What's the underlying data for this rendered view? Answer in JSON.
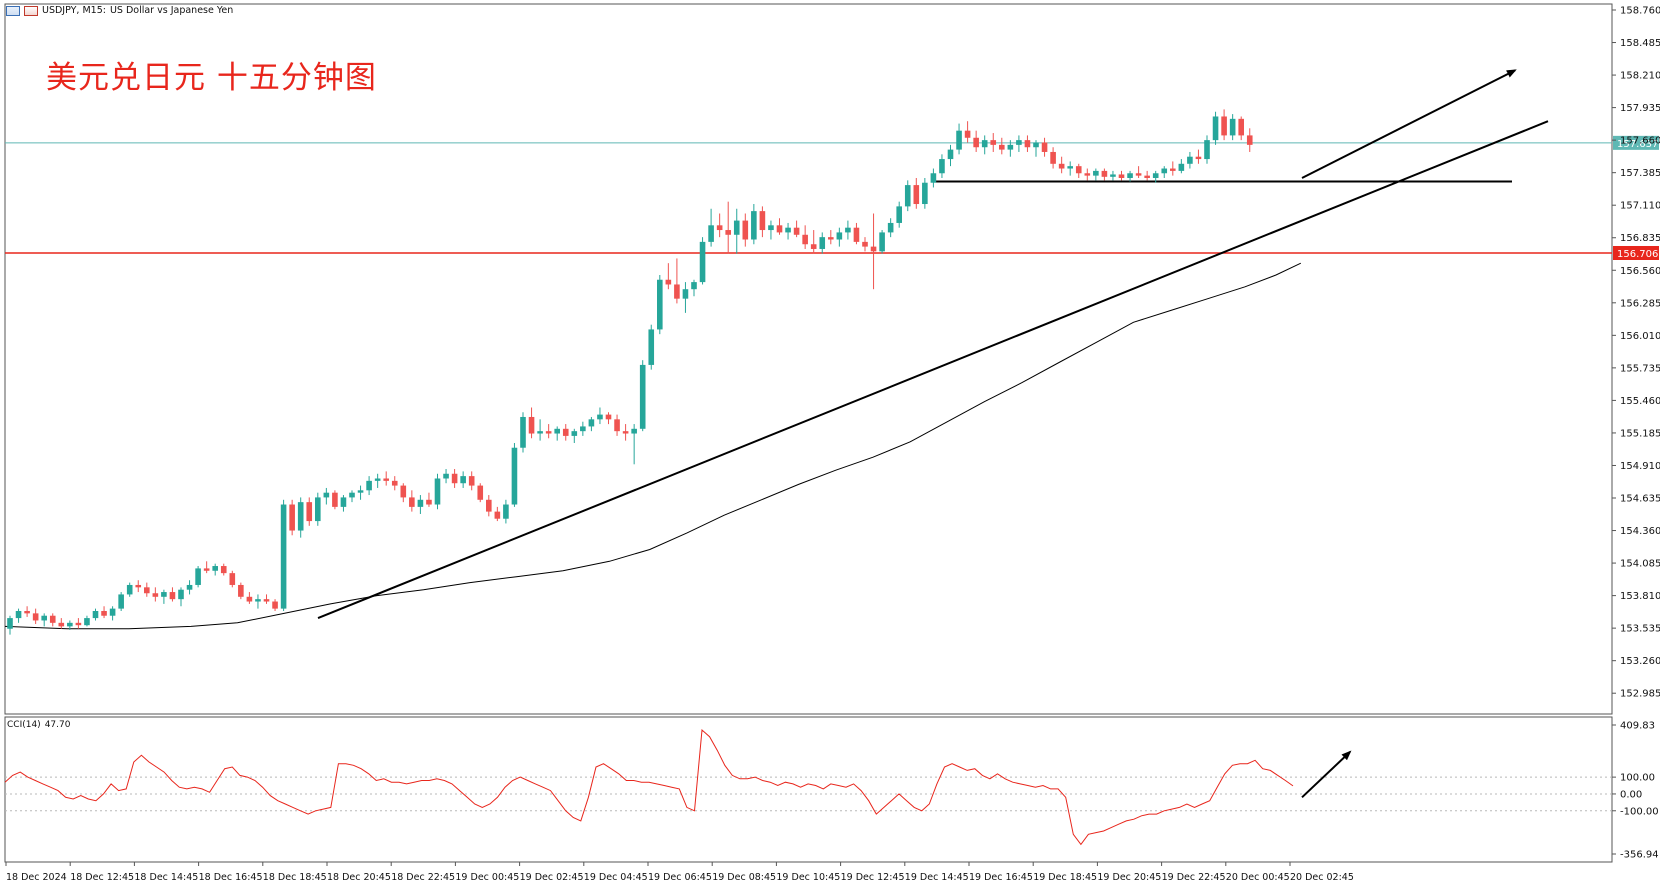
{
  "header": {
    "symbol": "USDJPY, M15:",
    "description": "US Dollar vs Japanese Yen",
    "menu_icon": "window-icon",
    "chart_icon": "chart-icon"
  },
  "title_overlay": "美元兑日元 十五分钟图",
  "colors": {
    "bull": "#26a69a",
    "bear": "#ef5350",
    "current_line": "#5fb8b4",
    "level_line": "#e8261c",
    "trendline": "#000000",
    "ma": "#000000",
    "cci": "#e8261c",
    "grid_dots": "#b8b8b8"
  },
  "chart_data": [
    {
      "type": "candlestick",
      "name": "USDJPY M15",
      "y_range": [
        152.86,
        158.76
      ],
      "y_ticks": [
        "158.760",
        "158.485",
        "158.210",
        "157.935",
        "157.660",
        "157.385",
        "157.110",
        "156.835",
        "156.560",
        "156.285",
        "156.010",
        "155.735",
        "155.460",
        "155.185",
        "154.910",
        "154.635",
        "154.360",
        "154.085",
        "153.810",
        "153.535",
        "153.260",
        "152.985"
      ],
      "x_ticks": [
        "18 Dec 2024",
        "18 Dec 12:45",
        "18 Dec 14:45",
        "18 Dec 16:45",
        "18 Dec 18:45",
        "18 Dec 20:45",
        "18 Dec 22:45",
        "19 Dec 00:45",
        "19 Dec 02:45",
        "19 Dec 04:45",
        "19 Dec 06:45",
        "19 Dec 08:45",
        "19 Dec 10:45",
        "19 Dec 12:45",
        "19 Dec 14:45",
        "19 Dec 16:45",
        "19 Dec 18:45",
        "19 Dec 20:45",
        "19 Dec 22:45",
        "20 Dec 00:45",
        "20 Dec 02:45"
      ],
      "price_levels": [
        {
          "label": "157.637",
          "value": 157.637,
          "role": "current"
        },
        {
          "label": "156.706",
          "value": 156.706,
          "role": "level"
        }
      ],
      "support_line": 157.31,
      "ohlc": [
        [
          153.53,
          153.64,
          153.48,
          153.62
        ],
        [
          153.62,
          153.7,
          153.58,
          153.68
        ],
        [
          153.68,
          153.72,
          153.63,
          153.66
        ],
        [
          153.66,
          153.7,
          153.57,
          153.6
        ],
        [
          153.6,
          153.66,
          153.55,
          153.64
        ],
        [
          153.64,
          153.66,
          153.55,
          153.58
        ],
        [
          153.58,
          153.62,
          153.53,
          153.55
        ],
        [
          153.55,
          153.6,
          153.52,
          153.58
        ],
        [
          153.58,
          153.62,
          153.53,
          153.56
        ],
        [
          153.56,
          153.64,
          153.55,
          153.62
        ],
        [
          153.62,
          153.7,
          153.6,
          153.68
        ],
        [
          153.68,
          153.72,
          153.62,
          153.64
        ],
        [
          153.64,
          153.72,
          153.6,
          153.7
        ],
        [
          153.7,
          153.84,
          153.68,
          153.82
        ],
        [
          153.82,
          153.92,
          153.8,
          153.9
        ],
        [
          153.9,
          153.94,
          153.84,
          153.88
        ],
        [
          153.88,
          153.92,
          153.8,
          153.83
        ],
        [
          153.83,
          153.88,
          153.76,
          153.8
        ],
        [
          153.8,
          153.86,
          153.74,
          153.84
        ],
        [
          153.84,
          153.88,
          153.76,
          153.78
        ],
        [
          153.78,
          153.88,
          153.72,
          153.86
        ],
        [
          153.86,
          153.94,
          153.82,
          153.9
        ],
        [
          153.9,
          154.06,
          153.88,
          154.04
        ],
        [
          154.04,
          154.1,
          154.0,
          154.02
        ],
        [
          154.02,
          154.08,
          153.98,
          154.06
        ],
        [
          154.06,
          154.08,
          153.98,
          154.0
        ],
        [
          154.0,
          154.02,
          153.88,
          153.9
        ],
        [
          153.9,
          153.92,
          153.78,
          153.8
        ],
        [
          153.8,
          153.84,
          153.74,
          153.76
        ],
        [
          153.76,
          153.82,
          153.7,
          153.78
        ],
        [
          153.78,
          153.82,
          153.74,
          153.76
        ],
        [
          153.76,
          153.78,
          153.68,
          153.7
        ],
        [
          153.7,
          154.62,
          153.68,
          154.58
        ],
        [
          154.58,
          154.62,
          154.32,
          154.36
        ],
        [
          154.36,
          154.64,
          154.3,
          154.6
        ],
        [
          154.6,
          154.64,
          154.4,
          154.44
        ],
        [
          154.44,
          154.68,
          154.4,
          154.64
        ],
        [
          154.64,
          154.72,
          154.58,
          154.68
        ],
        [
          154.68,
          154.7,
          154.54,
          154.56
        ],
        [
          154.56,
          154.66,
          154.52,
          154.64
        ],
        [
          154.64,
          154.7,
          154.6,
          154.68
        ],
        [
          154.68,
          154.74,
          154.62,
          154.7
        ],
        [
          154.7,
          154.82,
          154.66,
          154.78
        ],
        [
          154.78,
          154.84,
          154.72,
          154.8
        ],
        [
          154.8,
          154.86,
          154.74,
          154.78
        ],
        [
          154.78,
          154.82,
          154.7,
          154.74
        ],
        [
          154.74,
          154.76,
          154.6,
          154.64
        ],
        [
          154.64,
          154.7,
          154.52,
          154.56
        ],
        [
          154.56,
          154.66,
          154.5,
          154.62
        ],
        [
          154.62,
          154.68,
          154.56,
          154.58
        ],
        [
          154.58,
          154.84,
          154.54,
          154.8
        ],
        [
          154.8,
          154.88,
          154.76,
          154.84
        ],
        [
          154.84,
          154.88,
          154.72,
          154.76
        ],
        [
          154.76,
          154.86,
          154.72,
          154.82
        ],
        [
          154.82,
          154.86,
          154.7,
          154.74
        ],
        [
          154.74,
          154.76,
          154.6,
          154.62
        ],
        [
          154.62,
          154.66,
          154.48,
          154.52
        ],
        [
          154.52,
          154.56,
          154.44,
          154.46
        ],
        [
          154.46,
          154.62,
          154.42,
          154.58
        ],
        [
          154.58,
          155.1,
          154.56,
          155.06
        ],
        [
          155.06,
          155.36,
          155.02,
          155.32
        ],
        [
          155.32,
          155.4,
          155.14,
          155.18
        ],
        [
          155.18,
          155.3,
          155.12,
          155.2
        ],
        [
          155.2,
          155.26,
          155.14,
          155.18
        ],
        [
          155.18,
          155.24,
          155.12,
          155.22
        ],
        [
          155.22,
          155.26,
          155.12,
          155.16
        ],
        [
          155.16,
          155.22,
          155.1,
          155.2
        ],
        [
          155.2,
          155.28,
          155.16,
          155.24
        ],
        [
          155.24,
          155.32,
          155.2,
          155.3
        ],
        [
          155.3,
          155.4,
          155.26,
          155.34
        ],
        [
          155.34,
          155.36,
          155.26,
          155.3
        ],
        [
          155.3,
          155.34,
          155.16,
          155.2
        ],
        [
          155.2,
          155.26,
          155.12,
          155.18
        ],
        [
          155.18,
          155.26,
          154.92,
          155.22
        ],
        [
          155.22,
          155.8,
          155.2,
          155.76
        ],
        [
          155.76,
          156.1,
          155.72,
          156.06
        ],
        [
          156.06,
          156.52,
          156.02,
          156.48
        ],
        [
          156.48,
          156.62,
          156.4,
          156.44
        ],
        [
          156.44,
          156.66,
          156.28,
          156.32
        ],
        [
          156.32,
          156.46,
          156.2,
          156.4
        ],
        [
          156.4,
          156.48,
          156.34,
          156.46
        ],
        [
          156.46,
          156.84,
          156.44,
          156.8
        ],
        [
          156.8,
          157.08,
          156.76,
          156.94
        ],
        [
          156.94,
          157.04,
          156.84,
          156.9
        ],
        [
          156.9,
          157.14,
          156.7,
          156.86
        ],
        [
          156.86,
          157.08,
          156.7,
          156.98
        ],
        [
          156.98,
          157.04,
          156.76,
          156.82
        ],
        [
          156.82,
          157.12,
          156.78,
          157.06
        ],
        [
          157.06,
          157.1,
          156.84,
          156.9
        ],
        [
          156.9,
          156.98,
          156.82,
          156.94
        ],
        [
          156.94,
          157.0,
          156.86,
          156.88
        ],
        [
          156.88,
          156.96,
          156.82,
          156.92
        ],
        [
          156.92,
          156.98,
          156.84,
          156.86
        ],
        [
          156.86,
          156.94,
          156.74,
          156.78
        ],
        [
          156.78,
          156.9,
          156.7,
          156.74
        ],
        [
          156.74,
          156.88,
          156.7,
          156.84
        ],
        [
          156.84,
          156.9,
          156.78,
          156.82
        ],
        [
          156.82,
          156.92,
          156.76,
          156.88
        ],
        [
          156.88,
          156.98,
          156.82,
          156.92
        ],
        [
          156.92,
          156.96,
          156.78,
          156.8
        ],
        [
          156.8,
          156.84,
          156.72,
          156.76
        ],
        [
          156.76,
          157.04,
          156.4,
          156.72
        ],
        [
          156.72,
          156.9,
          156.7,
          156.88
        ],
        [
          156.88,
          157.0,
          156.84,
          156.96
        ],
        [
          156.96,
          157.14,
          156.92,
          157.1
        ],
        [
          157.1,
          157.32,
          157.06,
          157.28
        ],
        [
          157.28,
          157.34,
          157.08,
          157.12
        ],
        [
          157.12,
          157.34,
          157.08,
          157.3
        ],
        [
          157.3,
          157.42,
          157.26,
          157.38
        ],
        [
          157.38,
          157.54,
          157.34,
          157.5
        ],
        [
          157.5,
          157.62,
          157.44,
          157.58
        ],
        [
          157.58,
          157.8,
          157.54,
          157.74
        ],
        [
          157.74,
          157.82,
          157.64,
          157.68
        ],
        [
          157.68,
          157.74,
          157.56,
          157.6
        ],
        [
          157.6,
          157.7,
          157.54,
          157.66
        ],
        [
          157.66,
          157.72,
          157.56,
          157.62
        ],
        [
          157.62,
          157.68,
          157.54,
          157.58
        ],
        [
          157.58,
          157.66,
          157.52,
          157.62
        ],
        [
          157.62,
          157.7,
          157.56,
          157.66
        ],
        [
          157.66,
          157.7,
          157.56,
          157.6
        ],
        [
          157.6,
          157.66,
          157.52,
          157.64
        ],
        [
          157.64,
          157.68,
          157.52,
          157.56
        ],
        [
          157.56,
          157.6,
          157.42,
          157.46
        ],
        [
          157.46,
          157.52,
          157.38,
          157.42
        ],
        [
          157.42,
          157.48,
          157.36,
          157.44
        ],
        [
          157.44,
          157.46,
          157.34,
          157.38
        ],
        [
          157.38,
          157.42,
          157.32,
          157.36
        ],
        [
          157.36,
          157.42,
          157.32,
          157.4
        ],
        [
          157.4,
          157.42,
          157.32,
          157.35
        ],
        [
          157.35,
          157.4,
          157.32,
          157.37
        ],
        [
          157.37,
          157.4,
          157.32,
          157.34
        ],
        [
          157.34,
          157.4,
          157.31,
          157.38
        ],
        [
          157.38,
          157.44,
          157.34,
          157.36
        ],
        [
          157.36,
          157.4,
          157.32,
          157.34
        ],
        [
          157.34,
          157.4,
          157.3,
          157.38
        ],
        [
          157.38,
          157.44,
          157.34,
          157.42
        ],
        [
          157.42,
          157.48,
          157.36,
          157.4
        ],
        [
          157.4,
          157.5,
          157.38,
          157.46
        ],
        [
          157.46,
          157.56,
          157.42,
          157.52
        ],
        [
          157.52,
          157.58,
          157.46,
          157.5
        ],
        [
          157.5,
          157.7,
          157.46,
          157.66
        ],
        [
          157.66,
          157.9,
          157.62,
          157.86
        ],
        [
          157.86,
          157.92,
          157.66,
          157.7
        ],
        [
          157.7,
          157.88,
          157.66,
          157.84
        ],
        [
          157.84,
          157.86,
          157.66,
          157.7
        ],
        [
          157.7,
          157.76,
          157.56,
          157.62
        ]
      ],
      "ma_points": [
        [
          0,
          153.55
        ],
        [
          20,
          153.53
        ],
        [
          40,
          153.53
        ],
        [
          60,
          153.55
        ],
        [
          75,
          153.58
        ],
        [
          90,
          153.66
        ],
        [
          105,
          153.74
        ],
        [
          120,
          153.81
        ],
        [
          135,
          153.86
        ],
        [
          150,
          153.92
        ],
        [
          165,
          153.97
        ],
        [
          180,
          154.02
        ],
        [
          195,
          154.1
        ],
        [
          208,
          154.2
        ],
        [
          220,
          154.34
        ],
        [
          232,
          154.49
        ],
        [
          244,
          154.62
        ],
        [
          256,
          154.75
        ],
        [
          268,
          154.87
        ],
        [
          280,
          154.98
        ],
        [
          292,
          155.11
        ],
        [
          304,
          155.28
        ],
        [
          316,
          155.45
        ],
        [
          328,
          155.61
        ],
        [
          340,
          155.78
        ],
        [
          352,
          155.95
        ],
        [
          364,
          156.12
        ],
        [
          376,
          156.22
        ],
        [
          388,
          156.32
        ],
        [
          400,
          156.42
        ],
        [
          410,
          156.52
        ],
        [
          418,
          156.62
        ]
      ]
    },
    {
      "type": "line",
      "name": "CCI(14)",
      "value_label": "47.70",
      "y_range": [
        -356.94,
        409.83
      ],
      "y_ticks": [
        "409.83",
        "100.00",
        "0.00",
        "-100.00",
        "-356.94"
      ],
      "values": [
        70,
        110,
        130,
        100,
        80,
        60,
        40,
        20,
        -20,
        -30,
        -10,
        -30,
        -40,
        0,
        60,
        20,
        30,
        190,
        230,
        190,
        160,
        130,
        80,
        40,
        30,
        40,
        30,
        10,
        80,
        150,
        160,
        110,
        100,
        80,
        40,
        -10,
        -40,
        -60,
        -80,
        -100,
        -120,
        -100,
        -90,
        -80,
        180,
        180,
        170,
        150,
        120,
        80,
        90,
        70,
        70,
        60,
        70,
        80,
        80,
        90,
        80,
        60,
        20,
        -20,
        -60,
        -80,
        -60,
        -20,
        40,
        80,
        100,
        80,
        60,
        40,
        20,
        -40,
        -100,
        -140,
        -160,
        -20,
        160,
        180,
        150,
        120,
        80,
        80,
        70,
        70,
        60,
        50,
        40,
        30,
        -80,
        -100,
        380,
        340,
        260,
        170,
        110,
        90,
        90,
        100,
        80,
        70,
        50,
        70,
        60,
        40,
        60,
        50,
        30,
        60,
        50,
        40,
        60,
        20,
        -40,
        -120,
        -80,
        -40,
        0,
        -40,
        -80,
        -100,
        -60,
        60,
        160,
        180,
        160,
        140,
        150,
        110,
        90,
        120,
        90,
        70,
        60,
        50,
        40,
        50,
        30,
        30,
        -20,
        -240,
        -300,
        -240,
        -230,
        -220,
        -200,
        -180,
        -160,
        -150,
        -130,
        -120,
        -120,
        -100,
        -90,
        -80,
        -60,
        -80,
        -60,
        -40,
        40,
        120,
        170,
        180,
        180,
        200,
        150,
        140,
        110,
        80,
        47.7
      ],
      "reference_levels": [
        100,
        0,
        -100
      ]
    }
  ]
}
